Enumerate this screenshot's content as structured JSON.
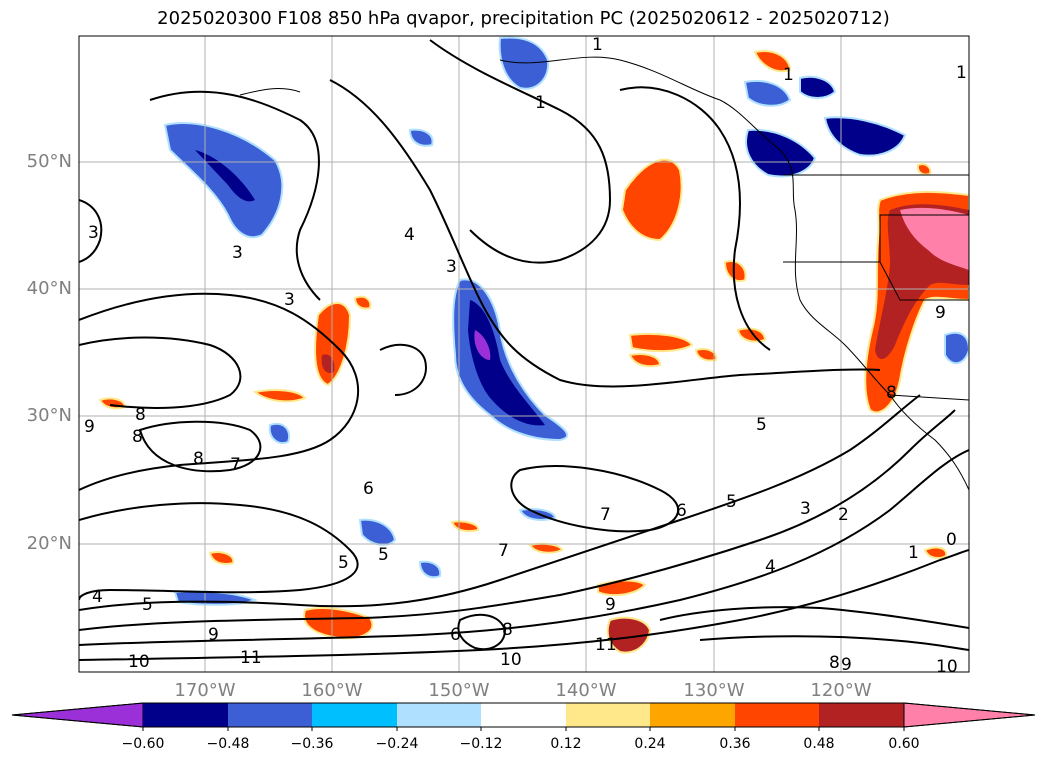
{
  "title": "2025020300 F108 850 hPa qvapor, precipitation PC (2025020612 - 2025020712)",
  "lat_labels": [
    "50°N",
    "40°N",
    "30°N",
    "20°N"
  ],
  "lon_labels": [
    "170°W",
    "160°W",
    "150°W",
    "140°W",
    "130°W",
    "120°W"
  ],
  "colorbar": {
    "ticks": [
      "−0.60",
      "−0.48",
      "−0.36",
      "−0.24",
      "−0.12",
      "0.12",
      "0.24",
      "0.36",
      "0.48",
      "0.60"
    ],
    "colors": [
      "#9b30d9",
      "#00008b",
      "#3c5fd6",
      "#00bfff",
      "#b0e0ff",
      "#ffffff",
      "#ffe88a",
      "#ffa500",
      "#ff4500",
      "#b22222",
      "#ff80a8"
    ]
  },
  "contour_labels": [
    "1",
    "1",
    "1",
    "3",
    "3",
    "3",
    "4",
    "3",
    "9",
    "8",
    "8",
    "8",
    "7",
    "6",
    "5",
    "4",
    "5",
    "9",
    "10",
    "11",
    "5",
    "6",
    "7",
    "7",
    "8",
    "9",
    "10",
    "11",
    "6",
    "5",
    "3",
    "2",
    "4",
    "1",
    "0",
    "8",
    "9",
    "10",
    "9",
    "8",
    "5",
    "1"
  ]
}
